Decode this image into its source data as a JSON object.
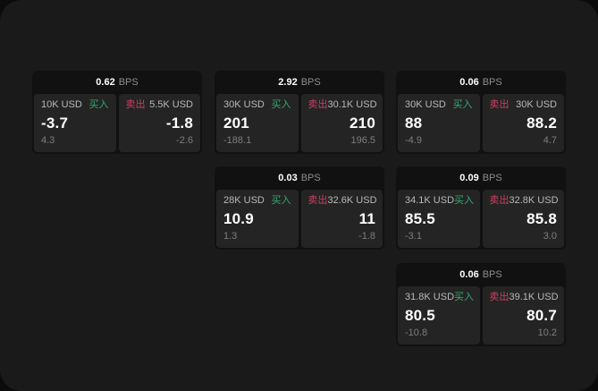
{
  "labels": {
    "bps_unit": "BPS",
    "buy": "买入",
    "sell": "卖出"
  },
  "colors": {
    "page_bg": "#0b0b0b",
    "surface_bg": "#1a1a1a",
    "card_bg": "#111111",
    "panel_bg": "#242424",
    "buy_green": "#35a873",
    "sell_red": "#ce3f63",
    "text_primary": "#ffffff",
    "text_secondary": "#b8b8b8",
    "text_muted": "#7e7e7e"
  },
  "cards": [
    {
      "bps": "0.62",
      "buy": {
        "amount": "10K USD",
        "price": "-3.7",
        "delta": "4.3"
      },
      "sell": {
        "amount": "5.5K USD",
        "price": "-1.8",
        "delta": "-2.6"
      }
    },
    {
      "bps": "2.92",
      "buy": {
        "amount": "30K USD",
        "price": "201",
        "delta": "-188.1"
      },
      "sell": {
        "amount": "30.1K USD",
        "price": "210",
        "delta": "196.5"
      }
    },
    {
      "bps": "0.06",
      "buy": {
        "amount": "30K USD",
        "price": "88",
        "delta": "-4.9"
      },
      "sell": {
        "amount": "30K USD",
        "price": "88.2",
        "delta": "4.7"
      }
    },
    {
      "bps": "0.03",
      "buy": {
        "amount": "28K USD",
        "price": "10.9",
        "delta": "1.3"
      },
      "sell": {
        "amount": "32.6K USD",
        "price": "11",
        "delta": "-1.8"
      }
    },
    {
      "bps": "0.09",
      "buy": {
        "amount": "34.1K USD",
        "price": "85.5",
        "delta": "-3.1"
      },
      "sell": {
        "amount": "32.8K USD",
        "price": "85.8",
        "delta": "3.0"
      }
    },
    {
      "bps": "0.06",
      "buy": {
        "amount": "31.8K USD",
        "price": "80.5",
        "delta": "-10.8"
      },
      "sell": {
        "amount": "39.1K USD",
        "price": "80.7",
        "delta": "10.2"
      }
    }
  ]
}
